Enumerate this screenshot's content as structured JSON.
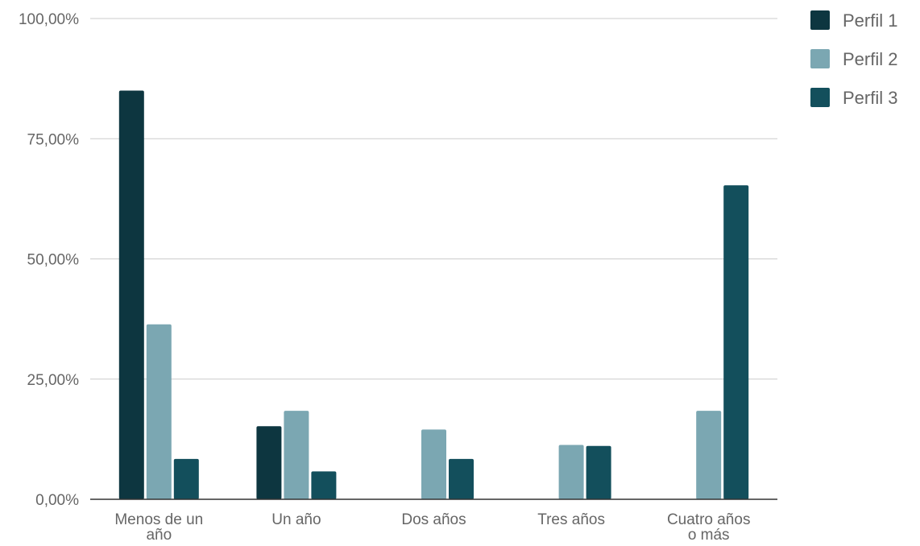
{
  "chart_data": {
    "type": "bar",
    "title": "",
    "xlabel": "",
    "ylabel": "",
    "ylim": [
      0,
      100
    ],
    "yticks": [
      0,
      25,
      50,
      75,
      100
    ],
    "ytick_labels": [
      "0,00%",
      "25,00%",
      "50,00%",
      "75,00%",
      "100,00%"
    ],
    "grid": true,
    "legend_position": "top-right",
    "categories": [
      [
        "Menos de un",
        "año"
      ],
      [
        "Un año"
      ],
      [
        "Dos años"
      ],
      [
        "Tres años"
      ],
      [
        "Cuatro años",
        "o más"
      ]
    ],
    "series": [
      {
        "name": "Perfil 1",
        "color": "#0d3640",
        "values": [
          85,
          15.2,
          0,
          0,
          0
        ]
      },
      {
        "name": "Perfil 2",
        "color": "#7ba7b2",
        "values": [
          36.4,
          18.4,
          14.5,
          11.3,
          18.4
        ]
      },
      {
        "name": "Perfil 3",
        "color": "#134f5c",
        "values": [
          8.4,
          5.8,
          8.4,
          11.1,
          65.3
        ]
      }
    ]
  }
}
